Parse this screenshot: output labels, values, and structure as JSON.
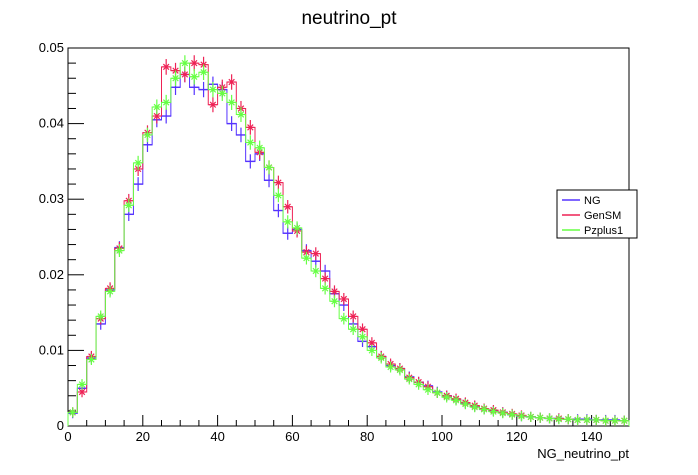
{
  "chart_data": {
    "type": "line",
    "title": "neutrino_pt",
    "xlabel": "NG_neutrino_pt",
    "ylabel": "",
    "xlim": [
      0,
      150
    ],
    "ylim": [
      0,
      0.05
    ],
    "x_ticks": [
      0,
      20,
      40,
      60,
      80,
      100,
      120,
      140
    ],
    "y_ticks": [
      0,
      0.01,
      0.02,
      0.03,
      0.04,
      0.05
    ],
    "x_tick_labels": [
      "0",
      "20",
      "40",
      "60",
      "80",
      "100",
      "120",
      "140"
    ],
    "y_tick_labels": [
      "0",
      "0.01",
      "0.02",
      "0.03",
      "0.04",
      "0.05"
    ],
    "grid": false,
    "legend_position": "right",
    "bin_width": 2.5,
    "bin_centers": [
      1.25,
      3.75,
      6.25,
      8.75,
      11.25,
      13.75,
      16.25,
      18.75,
      21.25,
      23.75,
      26.25,
      28.75,
      31.25,
      33.75,
      36.25,
      38.75,
      41.25,
      43.75,
      46.25,
      48.75,
      51.25,
      53.75,
      56.25,
      58.75,
      61.25,
      63.75,
      66.25,
      68.75,
      71.25,
      73.75,
      76.25,
      78.75,
      81.25,
      83.75,
      86.25,
      88.75,
      91.25,
      93.75,
      96.25,
      98.75,
      101.25,
      103.75,
      106.25,
      108.75,
      111.25,
      113.75,
      116.25,
      118.75,
      121.25,
      123.75,
      126.25,
      128.75,
      131.25,
      133.75,
      136.25,
      138.75,
      141.25,
      143.75,
      146.25,
      148.75
    ],
    "series": [
      {
        "name": "NG",
        "color": "#5533ff",
        "marker": "plus",
        "values": [
          0.0017,
          0.005,
          0.009,
          0.0135,
          0.018,
          0.0236,
          0.028,
          0.032,
          0.0372,
          0.0405,
          0.041,
          0.0448,
          0.0465,
          0.0448,
          0.0445,
          0.0452,
          0.0445,
          0.04,
          0.0385,
          0.035,
          0.036,
          0.0325,
          0.0285,
          0.0255,
          0.026,
          0.0232,
          0.0218,
          0.0205,
          0.0175,
          0.016,
          0.0135,
          0.0112,
          0.0105,
          0.0092,
          0.008,
          0.0076,
          0.0065,
          0.0058,
          0.0053,
          0.0045,
          0.004,
          0.0035,
          0.003,
          0.0026,
          0.0022,
          0.002,
          0.0018,
          0.0015,
          0.0013,
          0.0012,
          0.0011,
          0.001,
          0.001,
          0.0009,
          0.0009,
          0.0009,
          0.0008,
          0.0008,
          0.0008,
          0.0007
        ]
      },
      {
        "name": "GenSM",
        "color": "#ee2255",
        "marker": "star",
        "values": [
          0.0018,
          0.0045,
          0.0092,
          0.0142,
          0.0182,
          0.0235,
          0.0298,
          0.034,
          0.0388,
          0.041,
          0.0475,
          0.047,
          0.0465,
          0.048,
          0.0478,
          0.0425,
          0.0448,
          0.0455,
          0.042,
          0.0395,
          0.0362,
          0.0342,
          0.0322,
          0.029,
          0.0258,
          0.023,
          0.0228,
          0.0195,
          0.0178,
          0.0168,
          0.0145,
          0.0128,
          0.011,
          0.0092,
          0.0082,
          0.0076,
          0.0064,
          0.0058,
          0.0052,
          0.0044,
          0.004,
          0.0036,
          0.0031,
          0.0027,
          0.0023,
          0.0021,
          0.0018,
          0.0016,
          0.0014,
          0.0012,
          0.0011,
          0.001,
          0.001,
          0.0009,
          0.0008,
          0.0008,
          0.0008,
          0.0007,
          0.0007,
          0.0007
        ]
      },
      {
        "name": "Pzplus1",
        "color": "#66ff44",
        "marker": "star",
        "values": [
          0.0018,
          0.0055,
          0.0088,
          0.0145,
          0.0178,
          0.0232,
          0.0292,
          0.0348,
          0.0385,
          0.0422,
          0.0428,
          0.046,
          0.048,
          0.0462,
          0.0468,
          0.0445,
          0.044,
          0.0428,
          0.0412,
          0.0375,
          0.0368,
          0.0342,
          0.0305,
          0.027,
          0.0262,
          0.0222,
          0.0205,
          0.0182,
          0.0165,
          0.0142,
          0.0128,
          0.0118,
          0.01,
          0.009,
          0.0078,
          0.0074,
          0.0062,
          0.0055,
          0.0048,
          0.0044,
          0.0038,
          0.0034,
          0.0029,
          0.0025,
          0.0022,
          0.0019,
          0.0017,
          0.0015,
          0.0013,
          0.0012,
          0.0011,
          0.001,
          0.0009,
          0.0009,
          0.0008,
          0.0008,
          0.0008,
          0.0007,
          0.0007,
          0.0007
        ]
      }
    ]
  }
}
